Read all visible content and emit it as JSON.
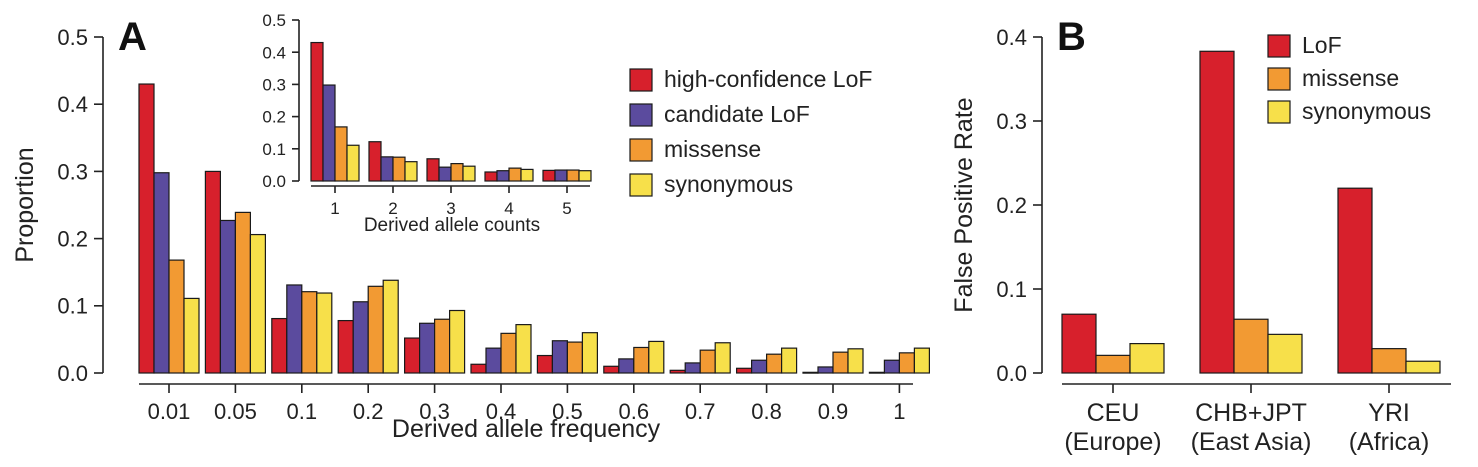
{
  "panels": {
    "a_letter": "A",
    "b_letter": "B"
  },
  "chart_data": [
    {
      "type": "bar",
      "panel": "A",
      "xlabel": "Derived allele frequency",
      "ylabel": "Proportion",
      "ylim": [
        0,
        0.5
      ],
      "yticks": [
        "0.0",
        "0.1",
        "0.2",
        "0.3",
        "0.4",
        "0.5"
      ],
      "categories": [
        "0.01",
        "0.05",
        "0.1",
        "0.2",
        "0.3",
        "0.4",
        "0.5",
        "0.6",
        "0.7",
        "0.8",
        "0.9",
        "1"
      ],
      "series": [
        {
          "name": "high-confidence LoF",
          "color": "#d7202c",
          "values": [
            0.43,
            0.3,
            0.081,
            0.078,
            0.052,
            0.013,
            0.026,
            0.01,
            0.004,
            0.007,
            0.001,
            0.001
          ]
        },
        {
          "name": "candidate LoF",
          "color": "#5b4b9e",
          "values": [
            0.298,
            0.227,
            0.131,
            0.106,
            0.074,
            0.037,
            0.048,
            0.021,
            0.015,
            0.019,
            0.009,
            0.019
          ]
        },
        {
          "name": "missense",
          "color": "#f29a33",
          "values": [
            0.168,
            0.239,
            0.121,
            0.129,
            0.08,
            0.059,
            0.046,
            0.038,
            0.034,
            0.028,
            0.031,
            0.03
          ]
        },
        {
          "name": "synonymous",
          "color": "#f7e04a",
          "values": [
            0.111,
            0.206,
            0.119,
            0.138,
            0.093,
            0.072,
            0.06,
            0.047,
            0.045,
            0.037,
            0.036,
            0.037
          ]
        }
      ],
      "legend": "top-right"
    },
    {
      "type": "bar",
      "panel": "A-inset",
      "xlabel": "Derived allele counts",
      "ylabel": "",
      "ylim": [
        0,
        0.5
      ],
      "yticks": [
        "0.0",
        "0.1",
        "0.2",
        "0.3",
        "0.4",
        "0.5"
      ],
      "categories": [
        "1",
        "2",
        "3",
        "4",
        "5"
      ],
      "series": [
        {
          "name": "high-confidence LoF",
          "color": "#d7202c",
          "values": [
            0.43,
            0.122,
            0.069,
            0.028,
            0.033
          ]
        },
        {
          "name": "candidate LoF",
          "color": "#5b4b9e",
          "values": [
            0.298,
            0.075,
            0.043,
            0.032,
            0.034
          ]
        },
        {
          "name": "missense",
          "color": "#f29a33",
          "values": [
            0.168,
            0.074,
            0.054,
            0.04,
            0.034
          ]
        },
        {
          "name": "synonymous",
          "color": "#f7e04a",
          "values": [
            0.111,
            0.06,
            0.046,
            0.036,
            0.032
          ]
        }
      ]
    },
    {
      "type": "bar",
      "panel": "B",
      "xlabel": "",
      "ylabel": "False Positive Rate",
      "ylim": [
        0,
        0.4
      ],
      "yticks": [
        "0.0",
        "0.1",
        "0.2",
        "0.3",
        "0.4"
      ],
      "categories": [
        {
          "line1": "CEU",
          "line2": "(Europe)"
        },
        {
          "line1": "CHB+JPT",
          "line2": "(East Asia)"
        },
        {
          "line1": "YRI",
          "line2": "(Africa)"
        }
      ],
      "series": [
        {
          "name": "LoF",
          "color": "#d7202c",
          "values": [
            0.07,
            0.383,
            0.22
          ]
        },
        {
          "name": "missense",
          "color": "#f29a33",
          "values": [
            0.021,
            0.064,
            0.029
          ]
        },
        {
          "name": "synonymous",
          "color": "#f7e04a",
          "values": [
            0.035,
            0.046,
            0.014
          ]
        }
      ],
      "legend": "top-right"
    }
  ]
}
